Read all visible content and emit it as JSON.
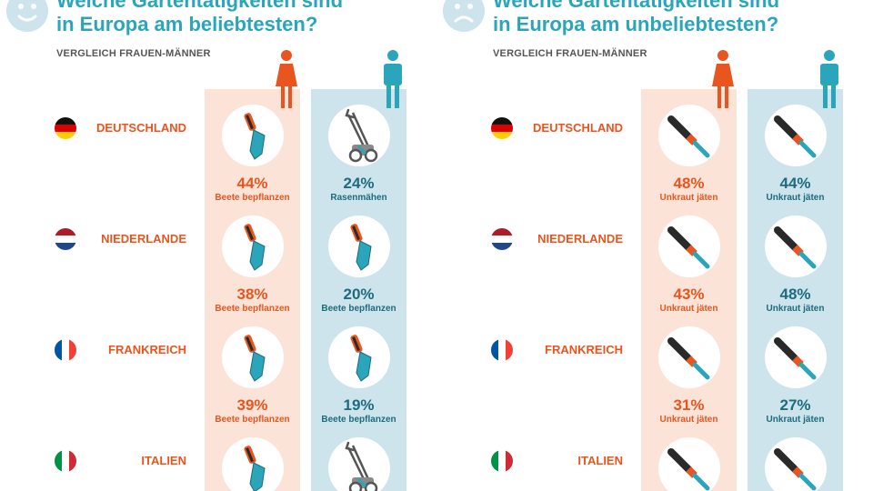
{
  "colors": {
    "women": "#e8551e",
    "men": "#1d6b7d",
    "accent": "#2aa5b9",
    "women_bg": "#fce3d8",
    "men_bg": "#cde4ed"
  },
  "chart_data": [
    {
      "type": "table",
      "title": "Welche Gartentätigkeiten sind in Europa am beliebtesten?",
      "title_line1": "Welche Gartentätigkeiten sind",
      "title_line2": "in Europa am beliebtesten?",
      "subtitle": "VERGLEICH FRAUEN-MÄNNER",
      "mood_icon": "happy-face-icon",
      "columns": [
        "Frauen",
        "Männer"
      ],
      "rows": [
        {
          "country": "DEUTSCHLAND",
          "flag": "germany-flag-icon",
          "women": {
            "value": 44,
            "label": "44%",
            "activity": "Beete bepflanzen",
            "icon": "trowel-icon"
          },
          "men": {
            "value": 24,
            "label": "24%",
            "activity": "Rasenmähen",
            "icon": "lawnmower-icon"
          }
        },
        {
          "country": "NIEDERLANDE",
          "flag": "netherlands-flag-icon",
          "women": {
            "value": 38,
            "label": "38%",
            "activity": "Beete bepflanzen",
            "icon": "trowel-icon"
          },
          "men": {
            "value": 20,
            "label": "20%",
            "activity": "Beete bepflanzen",
            "icon": "trowel-icon"
          }
        },
        {
          "country": "FRANKREICH",
          "flag": "france-flag-icon",
          "women": {
            "value": 39,
            "label": "39%",
            "activity": "Beete bepflanzen",
            "icon": "trowel-icon"
          },
          "men": {
            "value": 19,
            "label": "19%",
            "activity": "Beete bepflanzen",
            "icon": "trowel-icon"
          }
        },
        {
          "country": "ITALIEN",
          "flag": "italy-flag-icon",
          "women": {
            "icon": "trowel-icon"
          },
          "men": {
            "icon": "lawnmower-icon"
          }
        }
      ]
    },
    {
      "type": "table",
      "title": "Welche Gartentätigkeiten sind in Europa am unbeliebtesten?",
      "title_line1": "Welche Gartentätigkeiten sind",
      "title_line2": "in Europa am unbeliebtesten?",
      "subtitle": "VERGLEICH FRAUEN-MÄNNER",
      "mood_icon": "sad-face-icon",
      "columns": [
        "Frauen",
        "Männer"
      ],
      "rows": [
        {
          "country": "DEUTSCHLAND",
          "flag": "germany-flag-icon",
          "women": {
            "value": 48,
            "label": "48%",
            "activity": "Unkraut jäten",
            "icon": "weeder-icon"
          },
          "men": {
            "value": 44,
            "label": "44%",
            "activity": "Unkraut jäten",
            "icon": "weeder-icon"
          }
        },
        {
          "country": "NIEDERLANDE",
          "flag": "netherlands-flag-icon",
          "women": {
            "value": 43,
            "label": "43%",
            "activity": "Unkraut jäten",
            "icon": "weeder-icon"
          },
          "men": {
            "value": 48,
            "label": "48%",
            "activity": "Unkraut jäten",
            "icon": "weeder-icon"
          }
        },
        {
          "country": "FRANKREICH",
          "flag": "france-flag-icon",
          "women": {
            "value": 31,
            "label": "31%",
            "activity": "Unkraut jäten",
            "icon": "weeder-icon"
          },
          "men": {
            "value": 27,
            "label": "27%",
            "activity": "Unkraut jäten",
            "icon": "weeder-icon"
          }
        },
        {
          "country": "ITALIEN",
          "flag": "italy-flag-icon",
          "women": {
            "icon": "weeder-icon"
          },
          "men": {
            "icon": "weeder-icon"
          }
        }
      ]
    }
  ]
}
